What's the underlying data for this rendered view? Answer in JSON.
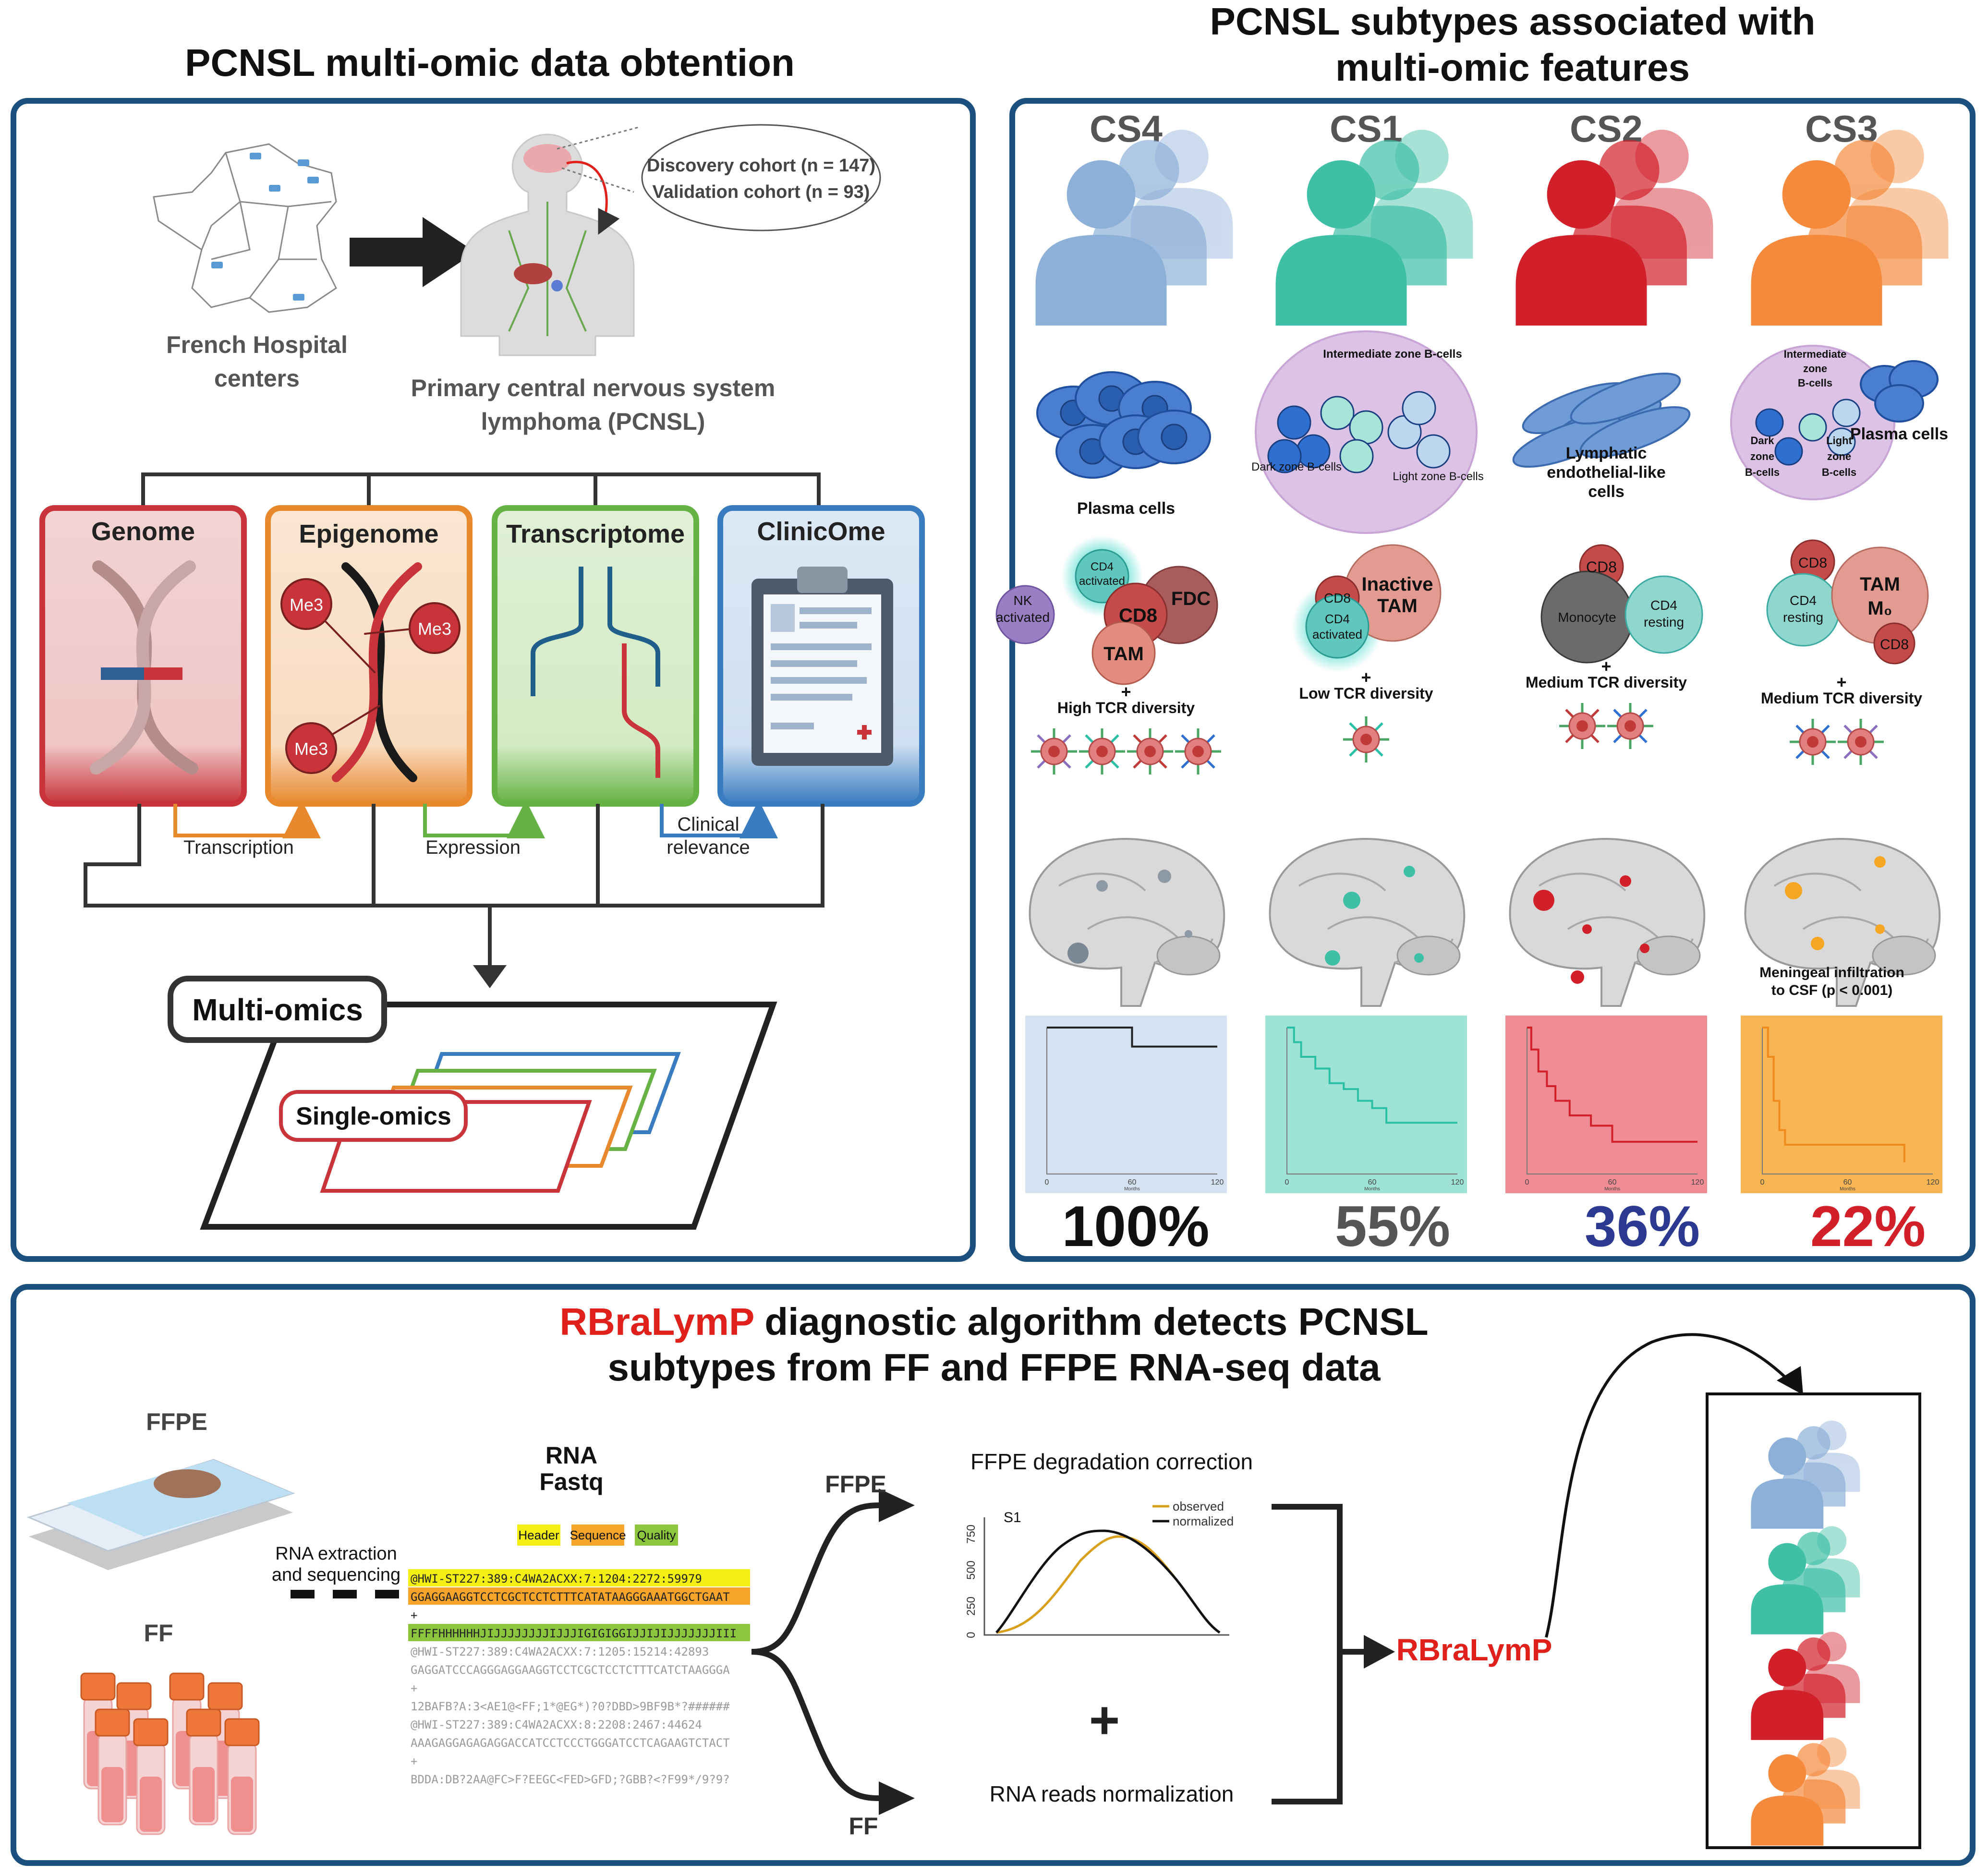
{
  "colors": {
    "frame": "#1b4f7e",
    "cs4": "#8db0d8",
    "cs1": "#3fbfa6",
    "cs2": "#d2202a",
    "cs3": "#f5893c",
    "genome": "#c8343a",
    "epigenome": "#e8892e",
    "transcriptome": "#66b245",
    "clinicome": "#3a7cc0",
    "accent_red": "#e0201b"
  },
  "panel1": {
    "title": "PCNSL multi-omic data obtention",
    "hospital_label_line1": "French Hospital",
    "hospital_label_line2": "centers",
    "discovery": "Discovery cohort (n = 147)",
    "validation": "Validation cohort (n = 93)",
    "disease_line1": "Primary central nervous system",
    "disease_line2": "lymphoma (PCNSL)",
    "omics": [
      "Genome",
      "Epigenome",
      "Transcriptome",
      "ClinicOme"
    ],
    "me3": "Me3",
    "arrow_transcription": "Transcription",
    "arrow_expression": "Expression",
    "arrow_clinical1": "Clinical",
    "arrow_clinical2": "relevance",
    "multi_omics": "Multi-omics",
    "single_omics": "Single-omics"
  },
  "panel2": {
    "title_line1": "PCNSL subtypes associated with",
    "title_line2": "multi-omic features",
    "subtypes": [
      {
        "name": "CS4",
        "cells_label": "Plasma cells",
        "tme": [
          "CD4 activated",
          "NK activated",
          "CD8",
          "FDC",
          "TAM"
        ],
        "tcr": "High TCR diversity",
        "survival": "100%"
      },
      {
        "name": "CS1",
        "cells_label": "Intermediate zone B-cells",
        "cells_sub": [
          "Dark zone B-cells",
          "Light zone B-cells"
        ],
        "tme": [
          "CD8",
          "Inactive TAM",
          "CD4 activated"
        ],
        "tcr": "Low TCR diversity",
        "survival": "55%"
      },
      {
        "name": "CS2",
        "cells_label": "Lymphatic endothelial-like cells",
        "tme": [
          "CD8",
          "Monocyte",
          "CD4 resting"
        ],
        "tcr": "Medium TCR diversity",
        "survival": "36%"
      },
      {
        "name": "CS3",
        "cells_label": "Intermediate zone B-cells",
        "cells_sub": [
          "Dark zone B-cells",
          "Light zone B-cells",
          "Plasma cells"
        ],
        "tme": [
          "CD8",
          "CD4 resting",
          "TAM M0",
          "CD8"
        ],
        "tcr": "Medium TCR diversity",
        "meningeal_line1": "Meningeal infiltration",
        "meningeal_line2": "to CSF (p < 0.001)",
        "survival": "22%"
      }
    ],
    "plus": "+",
    "km_axis": {
      "x_label": "Months",
      "x_ticks": [
        "0",
        "60",
        "120"
      ]
    },
    "survival_colors": [
      "#111111",
      "#555555",
      "#2b3990",
      "#d2202a"
    ]
  },
  "panel3": {
    "title_brand": "RBraLymP",
    "title_rest": " diagnostic algorithm detects PCNSL",
    "title_line2": "subtypes from FF and FFPE RNA-seq data",
    "ffpe_label": "FFPE",
    "ff_label": "FF",
    "extraction_line1": "RNA extraction",
    "extraction_line2": "and sequencing",
    "rna_line1": "RNA",
    "rna_line2": "Fastq",
    "legend": [
      "Header",
      "Sequence",
      "Quality"
    ],
    "fastq_lines": [
      "@HWI-ST227:389:C4WA2ACXX:7:1204:2272:59979",
      "GGAGGAAGGTCCTCGCTCCTCTTTCATATAAGGGAAATGGCTGAAT",
      "+",
      "FFFFHHHHHHJIJJJJJJJJIJJJIGIGIGGIJJIJIJJJJJJJIII",
      "@HWI-ST227:389:C4WA2ACXX:7:1205:15214:42893",
      "GAGGATCCCAGGGAGGAAGGTCCTCGCTCCTCTTTCATCTAAGGGA",
      "+",
      "12BAFB?A:3<AE1@<FF;1*@EG*)?0?DBD>9BF9B*?######",
      "@HWI-ST227:389:C4WA2ACXX:8:2208:2467:44624",
      "AAAGAGGAGAGAGGACCATCCTCCCTGGGATCCTCAGAAGTCTACT",
      "+",
      "BDDA:DB?2AA@FC>F?EEGC<FED>GFD;?GBB?<?F99*/9?9?"
    ],
    "branch_ffpe": "FFPE",
    "branch_ff": "FF",
    "correction_title": "FFPE degradation correction",
    "plot_label": "S1",
    "plot_legend": [
      "observed",
      "normalized"
    ],
    "plot_yticks": [
      "0",
      "250",
      "500",
      "750"
    ],
    "plus": "+",
    "normalization": "RNA reads normalization",
    "algorithm": "RBraLymP"
  }
}
